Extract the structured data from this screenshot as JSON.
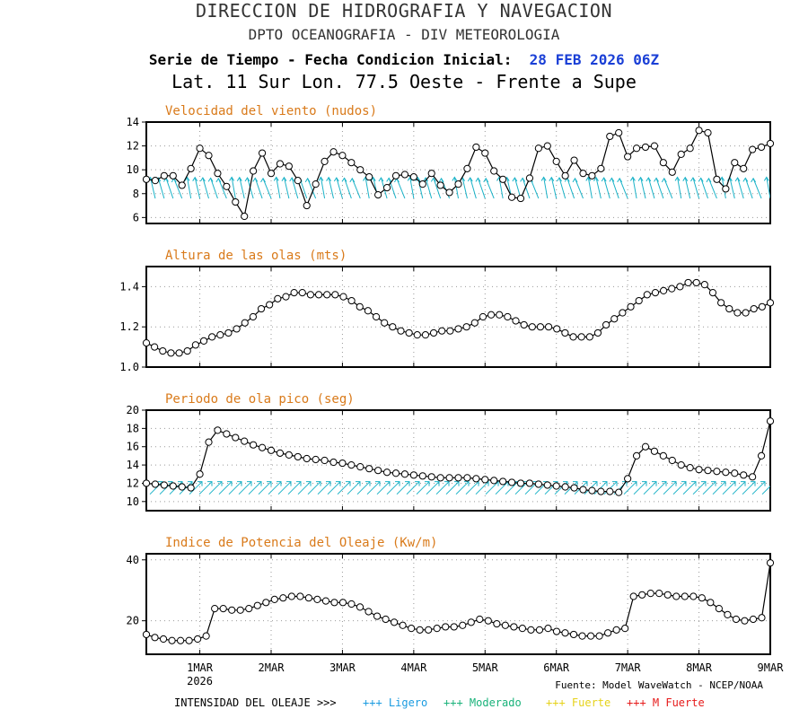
{
  "header": {
    "line1": "DIRECCION DE HIDROGRAFIA Y NAVEGACION",
    "line2": "DPTO OCEANOGRAFIA - DIV METEOROLOGIA",
    "line3_prefix": "Serie de Tiempo - Fecha Condicion Inicial:",
    "line3_date": "28 FEB 2026 06Z",
    "line4": "Lat. 11 Sur  Lon. 77.5 Oeste - Frente a Supe"
  },
  "colors": {
    "title": "#d97a1a",
    "arrows": "#19b2c7",
    "ligero": "#1a9be0",
    "moderado": "#19b27a",
    "fuerte": "#e6d21a",
    "mfuerte": "#e61a1a"
  },
  "xaxis": {
    "ticks": [
      {
        "label": "1MAR",
        "day": 1
      },
      {
        "label": "2MAR",
        "day": 2
      },
      {
        "label": "3MAR",
        "day": 3
      },
      {
        "label": "4MAR",
        "day": 4
      },
      {
        "label": "5MAR",
        "day": 5
      },
      {
        "label": "6MAR",
        "day": 6
      },
      {
        "label": "7MAR",
        "day": 7
      },
      {
        "label": "8MAR",
        "day": 8
      },
      {
        "label": "9MAR",
        "day": 9
      }
    ],
    "year": "2026"
  },
  "source": "Fuente: Model WaveWatch - NCEP/NOAA",
  "legend": {
    "prefix": "INTENSIDAD DEL OLEAJE >>>",
    "items": [
      {
        "label": "+++ Ligero",
        "color": "#1a9be0"
      },
      {
        "label": "+++ Moderado",
        "color": "#19b27a"
      },
      {
        "label": "+++ Fuerte",
        "color": "#e6d21a"
      },
      {
        "label": "+++ M Fuerte",
        "color": "#e61a1a"
      }
    ]
  },
  "chart_data": [
    {
      "type": "line",
      "title": "Velocidad del viento (nudos)",
      "ylim": [
        5.5,
        14
      ],
      "yticks": [
        6,
        8,
        10,
        12,
        14
      ],
      "grid": true,
      "values": [
        9.2,
        9.1,
        9.5,
        9.5,
        8.7,
        10.1,
        11.8,
        11.2,
        9.7,
        8.6,
        7.3,
        6.1,
        9.9,
        11.4,
        9.7,
        10.5,
        10.3,
        9.1,
        7.0,
        8.8,
        10.7,
        11.5,
        11.2,
        10.6,
        10.0,
        9.4,
        7.9,
        8.5,
        9.5,
        9.6,
        9.4,
        8.8,
        9.7,
        8.7,
        8.1,
        8.8,
        10.1,
        11.9,
        11.4,
        9.9,
        9.2,
        7.7,
        7.6,
        9.3,
        11.8,
        12.0,
        10.7,
        9.5,
        10.8,
        9.7,
        9.5,
        10.1,
        12.8,
        13.1,
        11.1,
        11.8,
        11.9,
        12.0,
        10.6,
        9.8,
        11.3,
        11.8,
        13.3,
        13.1,
        9.2,
        8.4,
        10.6,
        10.1,
        11.7,
        11.9,
        12.2
      ],
      "wind_arrows": true
    },
    {
      "type": "line",
      "title": "Altura de las olas (mts)",
      "ylim": [
        1.0,
        1.5
      ],
      "yticks": [
        1.0,
        1.2,
        1.4
      ],
      "grid": true,
      "values": [
        1.12,
        1.1,
        1.08,
        1.07,
        1.07,
        1.08,
        1.11,
        1.13,
        1.15,
        1.16,
        1.17,
        1.19,
        1.22,
        1.25,
        1.29,
        1.31,
        1.34,
        1.35,
        1.37,
        1.37,
        1.36,
        1.36,
        1.36,
        1.36,
        1.35,
        1.33,
        1.3,
        1.28,
        1.25,
        1.22,
        1.2,
        1.18,
        1.17,
        1.16,
        1.16,
        1.17,
        1.18,
        1.18,
        1.19,
        1.2,
        1.22,
        1.25,
        1.26,
        1.26,
        1.25,
        1.23,
        1.21,
        1.2,
        1.2,
        1.2,
        1.19,
        1.17,
        1.15,
        1.15,
        1.15,
        1.17,
        1.21,
        1.24,
        1.27,
        1.3,
        1.33,
        1.36,
        1.37,
        1.38,
        1.39,
        1.4,
        1.42,
        1.42,
        1.41,
        1.37,
        1.32,
        1.29,
        1.27,
        1.27,
        1.29,
        1.3,
        1.32
      ]
    },
    {
      "type": "line",
      "title": "Periodo de ola pico (seg)",
      "ylim": [
        9,
        20
      ],
      "yticks": [
        10,
        12,
        14,
        16,
        18,
        20
      ],
      "grid": true,
      "values": [
        12.0,
        11.9,
        11.8,
        11.7,
        11.6,
        11.5,
        13.0,
        16.5,
        17.8,
        17.4,
        17.0,
        16.6,
        16.2,
        15.9,
        15.6,
        15.3,
        15.1,
        14.9,
        14.7,
        14.6,
        14.5,
        14.3,
        14.2,
        14.0,
        13.8,
        13.6,
        13.4,
        13.2,
        13.1,
        13.0,
        12.9,
        12.8,
        12.7,
        12.6,
        12.6,
        12.6,
        12.6,
        12.5,
        12.4,
        12.3,
        12.2,
        12.1,
        12.0,
        12.0,
        11.9,
        11.8,
        11.7,
        11.6,
        11.5,
        11.3,
        11.2,
        11.1,
        11.1,
        11.0,
        12.5,
        15.0,
        16.0,
        15.5,
        15.0,
        14.5,
        14.0,
        13.7,
        13.5,
        13.4,
        13.3,
        13.2,
        13.1,
        12.9,
        12.7,
        15.0,
        18.8
      ],
      "wave_arrows": true
    },
    {
      "type": "line",
      "title": "Indice de Potencia del Oleaje (Kw/m)",
      "ylim": [
        9,
        42
      ],
      "yticks": [
        20,
        40
      ],
      "grid": true,
      "values": [
        15.5,
        14.5,
        14.0,
        13.5,
        13.5,
        13.5,
        14.0,
        15.0,
        24.0,
        24.0,
        23.5,
        23.5,
        24.0,
        25.0,
        26.0,
        27.0,
        27.5,
        28.0,
        28.0,
        27.5,
        27.0,
        26.5,
        26.0,
        26.0,
        25.5,
        24.5,
        23.0,
        21.5,
        20.5,
        19.5,
        18.5,
        17.5,
        17.0,
        17.0,
        17.5,
        18.0,
        18.0,
        18.5,
        19.5,
        20.5,
        20.0,
        19.0,
        18.5,
        18.0,
        17.5,
        17.0,
        17.0,
        17.5,
        16.5,
        16.0,
        15.5,
        15.0,
        15.0,
        15.0,
        16.0,
        17.0,
        17.5,
        28.0,
        28.5,
        29.0,
        29.0,
        28.5,
        28.0,
        28.0,
        28.0,
        27.5,
        26.0,
        24.0,
        22.0,
        20.5,
        20.0,
        20.5,
        21.0,
        39.0
      ]
    }
  ]
}
